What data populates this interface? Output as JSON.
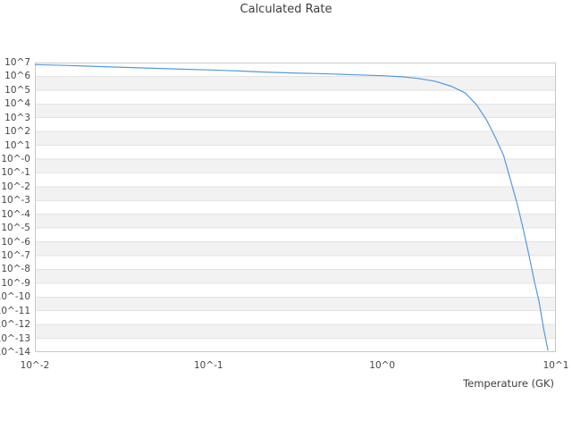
{
  "colors": {
    "line": "#5599dd",
    "band": "#f2f2f2",
    "grid": "#e3e3e3",
    "border": "#c8c8c8",
    "title_text": "#3d3d3d",
    "tick_text": "#464646"
  },
  "chart_data": {
    "type": "line",
    "title": "Calculated Rate",
    "xlabel": "Temperature (GK)",
    "ylabel": "",
    "x_scale": "log",
    "y_scale": "log",
    "xlim": [
      0.01,
      10
    ],
    "ylim": [
      1e-14,
      10000000.0
    ],
    "y_exponent_max": 7,
    "x_tick_labels": [
      "10^-2",
      "10^-1",
      "10^0",
      "10^1"
    ],
    "x_tick_exponents": [
      -2,
      -1,
      0,
      1
    ],
    "y_tick_labels": [
      "10^7",
      "10^6",
      "10^5",
      "10^4",
      "10^3",
      "10^2",
      "10^1",
      "10^-0",
      "10^-1",
      "10^-2",
      "10^-3",
      "10^-4",
      "10^-5",
      "10^-6",
      "10^-7",
      "10^-8",
      "10^-9",
      "10^-10",
      "10^-11",
      "10^-12",
      "10^-13",
      "10^-14"
    ],
    "grid": "horizontal-striped-bands",
    "legend": false,
    "series": [
      {
        "name": "calculated rate",
        "x_GK": [
          0.01,
          0.015,
          0.02,
          0.03,
          0.05,
          0.07,
          0.1,
          0.15,
          0.2,
          0.3,
          0.5,
          0.7,
          1.0,
          1.3,
          1.6,
          2.0,
          2.5,
          3.0,
          3.5,
          4.0,
          4.5,
          5.0,
          5.5,
          6.0,
          6.5,
          7.0,
          7.5,
          8.0,
          8.5,
          9.0
        ],
        "log10_rate": [
          6.85,
          6.79,
          6.74,
          6.67,
          6.58,
          6.52,
          6.47,
          6.39,
          6.32,
          6.25,
          6.18,
          6.11,
          6.05,
          5.97,
          5.85,
          5.65,
          5.28,
          4.8,
          3.93,
          2.8,
          1.52,
          0.25,
          -1.58,
          -3.3,
          -5.12,
          -6.98,
          -8.8,
          -10.35,
          -12.32,
          -13.86
        ]
      }
    ]
  }
}
